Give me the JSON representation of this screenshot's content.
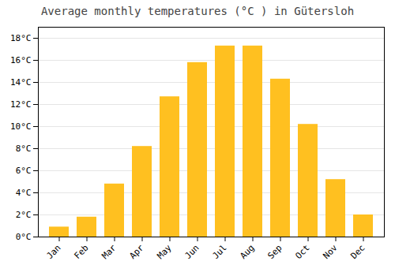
{
  "chart_data": {
    "type": "bar",
    "title": "Average monthly temperatures (°C ) in Gütersloh",
    "categories": [
      "Jan",
      "Feb",
      "Mar",
      "Apr",
      "May",
      "Jun",
      "Jul",
      "Aug",
      "Sep",
      "Oct",
      "Nov",
      "Dec"
    ],
    "values": [
      0.9,
      1.8,
      4.8,
      8.2,
      12.7,
      15.8,
      17.3,
      17.3,
      14.3,
      10.2,
      5.2,
      2.0
    ],
    "color": "#FFC020",
    "ylim": [
      0,
      19
    ],
    "yticks": [
      {
        "value": 0,
        "label": "0°C"
      },
      {
        "value": 2,
        "label": "2°C"
      },
      {
        "value": 4,
        "label": "4°C"
      },
      {
        "value": 6,
        "label": "6°C"
      },
      {
        "value": 8,
        "label": "8°C"
      },
      {
        "value": 10,
        "label": "10°C"
      },
      {
        "value": 12,
        "label": "12°C"
      },
      {
        "value": 14,
        "label": "14°C"
      },
      {
        "value": 16,
        "label": "16°C"
      },
      {
        "value": 18,
        "label": "18°C"
      }
    ],
    "grid": true
  }
}
